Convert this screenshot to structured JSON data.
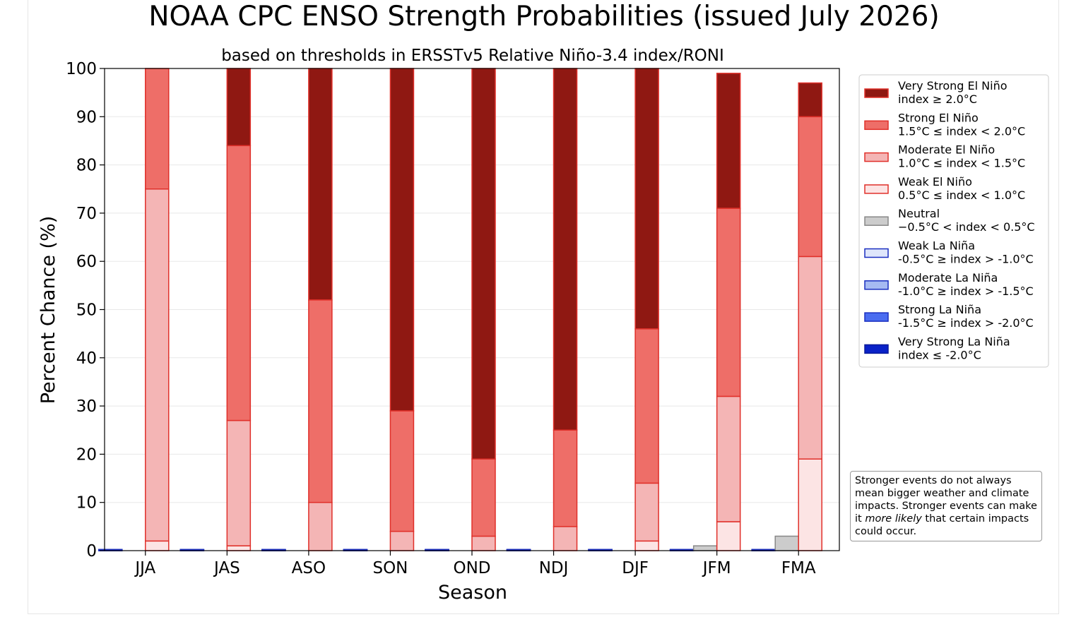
{
  "chart_data": {
    "type": "bar",
    "stacked": true,
    "title": "NOAA CPC ENSO Strength Probabilities (issued July 2026)",
    "subtitle": "based on thresholds in ERSSTv5 Relative Niño-3.4 index/RONI",
    "xlabel": "Season",
    "ylabel": "Percent Chance (%)",
    "ylim": [
      0,
      100
    ],
    "yticks": [
      0,
      10,
      20,
      30,
      40,
      50,
      60,
      70,
      80,
      90,
      100
    ],
    "grid": "horizontal",
    "legend_placement": "right",
    "categories": [
      "JJA",
      "JAS",
      "ASO",
      "SON",
      "OND",
      "NDJ",
      "DJF",
      "JFM",
      "FMA"
    ],
    "la_nina_series": [
      {
        "name": "Very Strong La Niña",
        "range": "index ≤ -2.0°C",
        "color": "#0a22c8",
        "edge": "#0a1a9a",
        "values": [
          0,
          0,
          0,
          0,
          0,
          0,
          0,
          0,
          0
        ]
      },
      {
        "name": "Strong La Niña",
        "range": "-1.5°C ≥ index > -2.0°C",
        "color": "#4a6cf0",
        "edge": "#1a2ec0",
        "values": [
          0,
          0,
          0,
          0,
          0,
          0,
          0,
          0,
          0
        ]
      },
      {
        "name": "Moderate La Niña",
        "range": "-1.0°C ≥ index > -1.5°C",
        "color": "#a6baf2",
        "edge": "#1a2ec0",
        "values": [
          0,
          0,
          0,
          0,
          0,
          0,
          0,
          0,
          0
        ]
      },
      {
        "name": "Weak La Niña",
        "range": "-0.5°C ≥ index > -1.0°C",
        "color": "#dfe6fb",
        "edge": "#1a2ec0",
        "values": [
          0,
          0,
          0,
          0,
          0,
          0,
          0,
          0,
          0
        ]
      }
    ],
    "neutral_series": {
      "name": "Neutral",
      "range": "−0.5°C < index < 0.5°C",
      "color": "#cccccc",
      "edge": "#888888",
      "values": [
        0,
        0,
        0,
        0,
        0,
        0,
        0,
        1,
        3
      ]
    },
    "el_nino_series": [
      {
        "name": "Weak El Niño",
        "range": "0.5°C ≤ index < 1.0°C",
        "color": "#fce4e4",
        "edge": "#e0302a",
        "values": [
          2,
          1,
          0,
          0,
          0,
          0,
          2,
          6,
          19
        ]
      },
      {
        "name": "Moderate El Niño",
        "range": "1.0°C ≤ index < 1.5°C",
        "color": "#f4b5b5",
        "edge": "#e0302a",
        "values": [
          73,
          26,
          10,
          4,
          3,
          5,
          12,
          26,
          42
        ]
      },
      {
        "name": "Strong El Niño",
        "range": "1.5°C ≤ index < 2.0°C",
        "color": "#ee6e68",
        "edge": "#e0302a",
        "values": [
          25,
          57,
          42,
          25,
          16,
          20,
          32,
          39,
          29
        ]
      },
      {
        "name": "Very Strong El Niño",
        "range": "index ≥ 2.0°C",
        "color": "#8f1812",
        "edge": "#e0302a",
        "values": [
          0,
          16,
          48,
          71,
          81,
          75,
          54,
          28,
          7
        ]
      }
    ],
    "legend_order": [
      "Very Strong El Niño",
      "Strong El Niño",
      "Moderate El Niño",
      "Weak El Niño",
      "Neutral",
      "Weak La Niña",
      "Moderate La Niña",
      "Strong La Niña",
      "Very Strong La Niña"
    ],
    "annotation": {
      "text_before": "Stronger events do not always mean bigger weather and climate impacts. Stronger events can make it ",
      "text_emphasis": "more likely",
      "text_after": " that certain impacts could occur."
    }
  }
}
